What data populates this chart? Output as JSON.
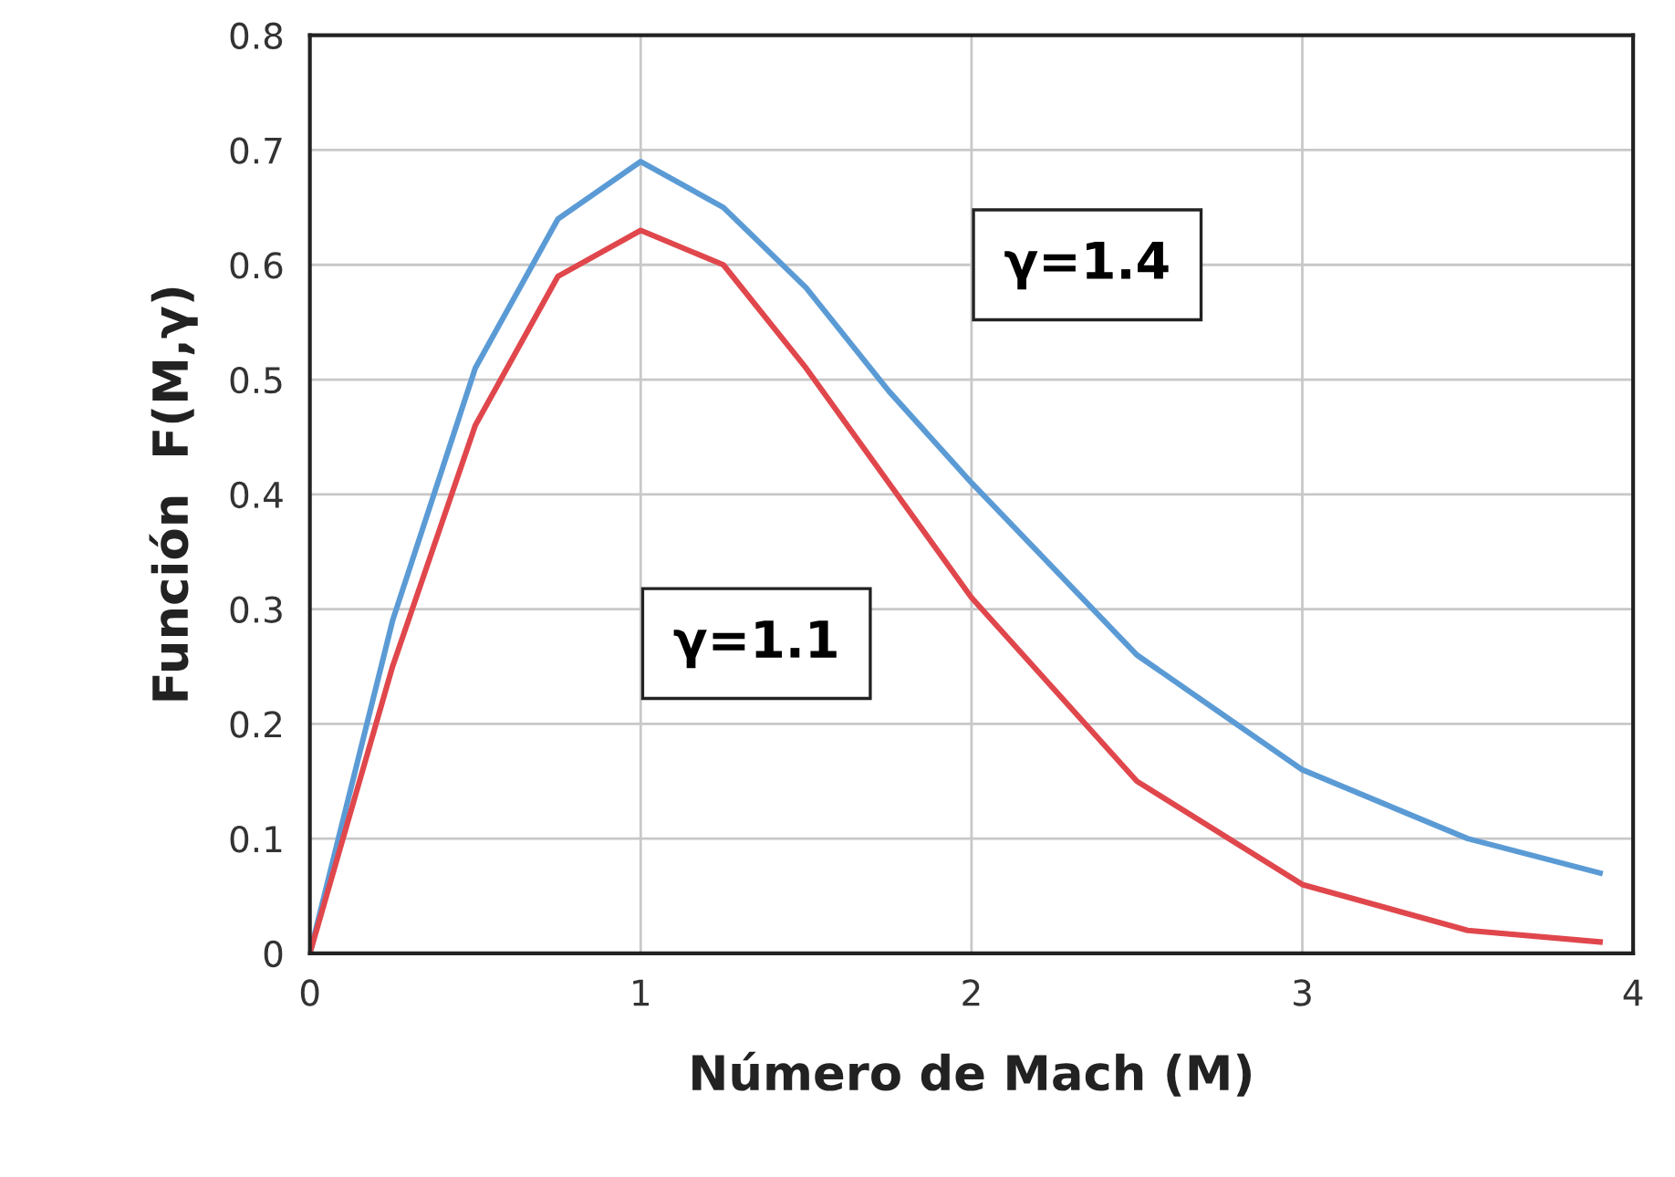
{
  "chart_data": {
    "type": "line",
    "xlabel": "Número de Mach (M)",
    "ylabel": "Función  F(M,γ)",
    "x": [
      0,
      0.25,
      0.5,
      0.75,
      1,
      1.25,
      1.5,
      1.75,
      2,
      2.5,
      3,
      3.5,
      3.9
    ],
    "series": [
      {
        "color": "#5b9bd5",
        "values": [
          0,
          0.29,
          0.51,
          0.64,
          0.69,
          0.65,
          0.58,
          0.49,
          0.41,
          0.26,
          0.16,
          0.1,
          0.07
        ]
      },
      {
        "color": "#e0474c",
        "values": [
          0,
          0.25,
          0.46,
          0.59,
          0.63,
          0.6,
          0.51,
          0.41,
          0.31,
          0.15,
          0.06,
          0.02,
          0.01
        ]
      }
    ],
    "annotations": [
      "γ=1.4",
      "γ=1.1"
    ],
    "xlim": [
      0,
      4
    ],
    "xticks": [
      0,
      1,
      2,
      3,
      4
    ],
    "ylim": [
      0,
      0.8
    ],
    "yticks": [
      0,
      0.1,
      0.2,
      0.3,
      0.4,
      0.5,
      0.6,
      0.7,
      0.8
    ],
    "grid": true,
    "marker": "none",
    "line_style": "solid",
    "legend": false
  }
}
